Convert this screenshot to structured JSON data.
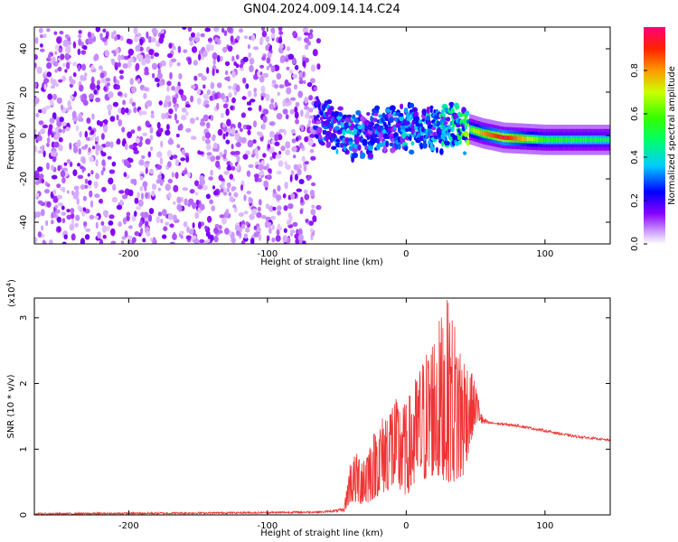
{
  "title": "GN04.2024.009.14.14.C24",
  "chart_data": [
    {
      "type": "heatmap",
      "xlabel": "Height of straight line (km)",
      "ylabel": "Frequency (Hz)",
      "xlim": [
        -268,
        147
      ],
      "ylim": [
        -50,
        50
      ],
      "xticks": [
        -200,
        -100,
        0,
        100
      ],
      "yticks": [
        -40,
        -20,
        0,
        20,
        40
      ],
      "colorbar": {
        "label": "Normalized spectral amplitude",
        "range": [
          0,
          1
        ],
        "ticks": [
          0.0,
          0.2,
          0.4,
          0.6,
          0.8
        ]
      },
      "noise_region_x": [
        -268,
        -63
      ],
      "signal_band": {
        "x": [
          -65,
          -40,
          -20,
          0,
          20,
          40,
          55,
          70,
          100,
          147
        ],
        "center_freq": [
          8,
          0,
          2,
          3,
          4,
          4,
          1,
          -1,
          -2,
          -2
        ],
        "peak_amplitude": [
          0.25,
          0.35,
          0.3,
          0.35,
          0.35,
          0.5,
          0.8,
          0.95,
          0.55,
          0.5
        ]
      },
      "grid": false
    },
    {
      "type": "line",
      "xlabel": "Height of straight line (km)",
      "ylabel": "SNR (10 * v/v)",
      "y_multiplier": "(x10",
      "y_multiplier_exp": "4",
      "y_multiplier_close": ")",
      "xlim": [
        -268,
        147
      ],
      "ylim": [
        0,
        3.3
      ],
      "xticks": [
        -200,
        -100,
        0,
        100
      ],
      "yticks": [
        0,
        1,
        2,
        3
      ],
      "series": [
        {
          "color": "#ee3333",
          "envelope_x": [
            -268,
            -100,
            -60,
            -45,
            -40,
            -30,
            -20,
            -10,
            0,
            10,
            20,
            30,
            40,
            50,
            55,
            60,
            80,
            100,
            120,
            147
          ],
          "envelope_max": [
            0.03,
            0.05,
            0.06,
            0.1,
            0.9,
            1.0,
            1.4,
            1.8,
            1.7,
            2.3,
            2.8,
            3.3,
            2.6,
            2.0,
            1.5,
            1.42,
            1.38,
            1.3,
            1.22,
            1.15
          ],
          "envelope_min": [
            0.0,
            0.02,
            0.03,
            0.05,
            0.2,
            0.15,
            0.3,
            0.4,
            0.3,
            0.5,
            0.6,
            0.5,
            0.5,
            1.4,
            1.35,
            1.38,
            1.34,
            1.26,
            1.18,
            1.12
          ]
        }
      ],
      "grid": false
    }
  ]
}
